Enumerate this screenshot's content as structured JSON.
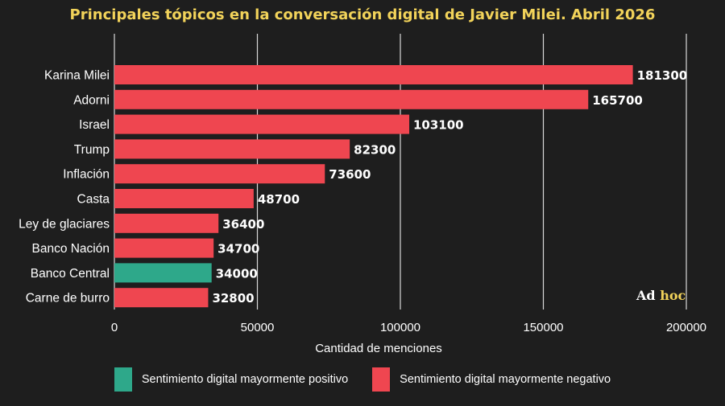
{
  "chart_data": {
    "type": "bar",
    "orientation": "horizontal",
    "title": "Principales tópicos en la conversación digital de Javier Milei. Abril 2026",
    "xlabel": "Cantidad de menciones",
    "ylabel": "",
    "xlim": [
      0,
      200000
    ],
    "x_ticks": [
      0,
      50000,
      100000,
      150000,
      200000
    ],
    "x_tick_labels": [
      "0",
      "50000",
      "100000",
      "150000",
      "200000"
    ],
    "grid": "vertical",
    "categories": [
      "Karina Milei",
      "Adorni",
      "Israel",
      "Trump",
      "Inflación",
      "Casta",
      "Ley de glaciares",
      "Banco Nación",
      "Banco Central",
      "Carne de burro"
    ],
    "values": [
      181300,
      165700,
      103100,
      82300,
      73600,
      48700,
      36400,
      34700,
      34000,
      32800
    ],
    "value_labels": [
      "181300",
      "165700",
      "103100",
      "82300",
      "73600",
      "48700",
      "36400",
      "34700",
      "34000",
      "32800"
    ],
    "sentiment": [
      "negative",
      "negative",
      "negative",
      "negative",
      "negative",
      "negative",
      "negative",
      "negative",
      "positive",
      "negative"
    ],
    "colors": {
      "positive": "#2ea88a",
      "negative": "#ef4650",
      "grid": "#d9d9d9",
      "background": "#1e1e1e",
      "title": "#f2d35a"
    },
    "legend": {
      "placement": "bottom",
      "entries": [
        {
          "key": "positive",
          "label": "Sentimiento digital mayormente positivo"
        },
        {
          "key": "negative",
          "label": "Sentimiento digital mayormente negativo"
        }
      ]
    }
  },
  "watermark": {
    "part1": "Ad",
    "part2": "hoc"
  }
}
